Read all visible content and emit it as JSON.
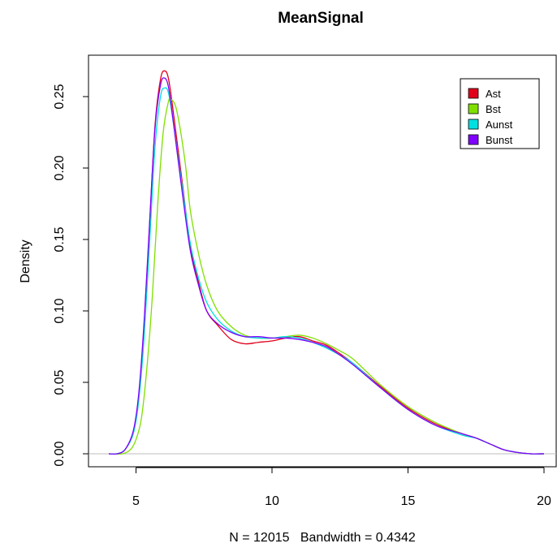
{
  "chart_data": {
    "type": "line",
    "title": "MeanSignal",
    "xlabel": "N = 12015   Bandwidth = 0.4342",
    "ylabel": "Density",
    "xlim": [
      4,
      20
    ],
    "ylim": [
      0,
      0.27
    ],
    "x_ticks": [
      "5",
      "10",
      "15",
      "20"
    ],
    "y_ticks": [
      "0.00",
      "0.05",
      "0.10",
      "0.15",
      "0.20",
      "0.25"
    ],
    "zero_line": true,
    "grid": false,
    "legend_position": "top-right",
    "series": [
      {
        "name": "Ast",
        "color": "#E0001A",
        "x": [
          4.0,
          4.3,
          4.6,
          4.9,
          5.1,
          5.3,
          5.5,
          5.7,
          5.9,
          6.05,
          6.2,
          6.4,
          6.7,
          7.0,
          7.3,
          7.6,
          8.0,
          8.5,
          9.0,
          9.5,
          10.0,
          10.5,
          11.0,
          11.5,
          12.0,
          12.5,
          13.0,
          14.0,
          15.0,
          16.0,
          17.0,
          17.5,
          18.0,
          18.5,
          19.0,
          19.5,
          20.0
        ],
        "values": [
          0.0,
          0.0,
          0.003,
          0.015,
          0.04,
          0.09,
          0.16,
          0.23,
          0.262,
          0.268,
          0.262,
          0.235,
          0.19,
          0.145,
          0.12,
          0.1,
          0.09,
          0.08,
          0.077,
          0.078,
          0.079,
          0.081,
          0.082,
          0.079,
          0.076,
          0.07,
          0.063,
          0.047,
          0.032,
          0.021,
          0.014,
          0.011,
          0.007,
          0.003,
          0.001,
          0.0,
          0.0
        ]
      },
      {
        "name": "Bst",
        "color": "#7FE000",
        "x": [
          4.0,
          4.5,
          4.8,
          5.0,
          5.2,
          5.4,
          5.6,
          5.8,
          6.0,
          6.2,
          6.3,
          6.5,
          6.8,
          7.0,
          7.3,
          7.6,
          8.0,
          8.5,
          9.0,
          9.5,
          10.0,
          10.5,
          11.0,
          11.5,
          12.0,
          12.5,
          13.0,
          14.0,
          15.0,
          16.0,
          17.0,
          17.5,
          18.0,
          18.5,
          19.0,
          19.5,
          20.0
        ],
        "values": [
          0.0,
          0.0,
          0.003,
          0.01,
          0.025,
          0.06,
          0.11,
          0.175,
          0.225,
          0.247,
          0.248,
          0.24,
          0.205,
          0.17,
          0.14,
          0.118,
          0.1,
          0.089,
          0.083,
          0.081,
          0.081,
          0.082,
          0.083,
          0.081,
          0.077,
          0.072,
          0.066,
          0.048,
          0.033,
          0.022,
          0.014,
          0.011,
          0.007,
          0.003,
          0.001,
          0.0,
          0.0
        ]
      },
      {
        "name": "Aunst",
        "color": "#00E0E0",
        "x": [
          4.0,
          4.3,
          4.6,
          4.9,
          5.1,
          5.3,
          5.5,
          5.7,
          5.9,
          6.05,
          6.2,
          6.4,
          6.7,
          7.0,
          7.3,
          7.6,
          8.0,
          8.5,
          9.0,
          9.5,
          10.0,
          10.5,
          11.0,
          11.5,
          12.0,
          12.5,
          13.0,
          14.0,
          15.0,
          16.0,
          17.0,
          17.5,
          18.0,
          18.5,
          19.0,
          19.5,
          20.0
        ],
        "values": [
          0.0,
          0.0,
          0.003,
          0.014,
          0.037,
          0.082,
          0.148,
          0.215,
          0.25,
          0.256,
          0.252,
          0.228,
          0.187,
          0.147,
          0.123,
          0.106,
          0.094,
          0.086,
          0.082,
          0.081,
          0.081,
          0.082,
          0.081,
          0.078,
          0.074,
          0.069,
          0.063,
          0.046,
          0.031,
          0.02,
          0.013,
          0.011,
          0.007,
          0.003,
          0.001,
          0.0,
          0.0
        ]
      },
      {
        "name": "Bunst",
        "color": "#8000FF",
        "x": [
          4.0,
          4.3,
          4.6,
          4.9,
          5.1,
          5.3,
          5.5,
          5.7,
          5.9,
          6.05,
          6.2,
          6.4,
          6.7,
          7.0,
          7.3,
          7.6,
          8.0,
          8.5,
          9.0,
          9.5,
          10.0,
          10.5,
          11.0,
          11.5,
          12.0,
          12.5,
          13.0,
          14.0,
          15.0,
          16.0,
          17.0,
          17.5,
          18.0,
          18.5,
          19.0,
          19.5,
          20.0
        ],
        "values": [
          0.0,
          0.0,
          0.003,
          0.016,
          0.042,
          0.093,
          0.162,
          0.228,
          0.258,
          0.263,
          0.256,
          0.228,
          0.183,
          0.142,
          0.118,
          0.1,
          0.091,
          0.085,
          0.082,
          0.082,
          0.081,
          0.081,
          0.08,
          0.078,
          0.075,
          0.069,
          0.062,
          0.046,
          0.031,
          0.02,
          0.014,
          0.011,
          0.007,
          0.003,
          0.001,
          0.0,
          0.0
        ]
      }
    ]
  }
}
